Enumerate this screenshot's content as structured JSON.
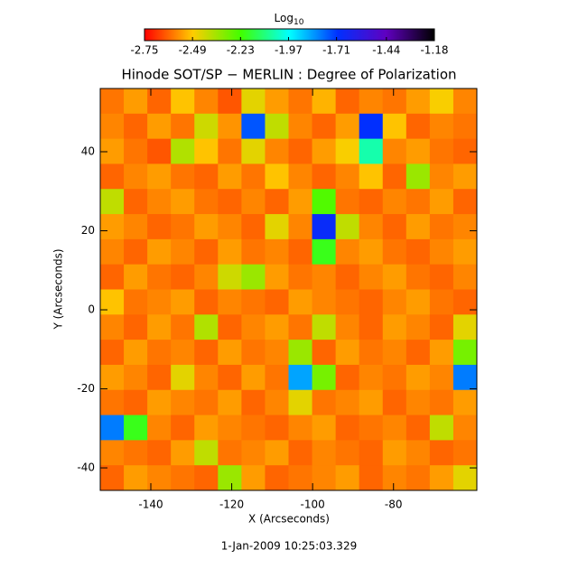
{
  "chart_data": {
    "type": "heatmap",
    "title": "Hinode SOT/SP − MERLIN : Degree of Polarization",
    "xlabel": "X (Arcseconds)",
    "ylabel": "Y (Arcseconds)",
    "footer": "1-Jan-2009 10:25:03.329",
    "colorbar_label": "Log",
    "colorbar_label_sub": "10",
    "xlim": [
      -152.5,
      -59.4
    ],
    "ylim": [
      -45.7,
      56
    ],
    "xticks": [
      -140,
      -120,
      -100,
      -80
    ],
    "yticks": [
      -40,
      -20,
      0,
      20,
      40
    ],
    "clim": [
      -2.75,
      -1.18
    ],
    "cticks": [
      -2.75,
      -2.49,
      -2.23,
      -1.97,
      -1.71,
      -1.44,
      -1.18
    ],
    "colormap": [
      "#ff0000",
      "#ffcc00",
      "#40ff00",
      "#00ffff",
      "#0030ff",
      "#6000c0",
      "#000000"
    ],
    "z": [
      [
        -2.6,
        -2.55,
        -2.62,
        -2.5,
        -2.58,
        -2.64,
        -2.45,
        -2.55,
        -2.6,
        -2.52,
        -2.62,
        -2.58,
        -2.6,
        -2.55,
        -2.48,
        -2.58
      ],
      [
        -2.58,
        -2.62,
        -2.55,
        -2.6,
        -2.42,
        -2.56,
        -1.75,
        -2.4,
        -2.58,
        -2.62,
        -2.55,
        -1.7,
        -2.5,
        -2.62,
        -2.58,
        -2.6
      ],
      [
        -2.55,
        -2.6,
        -2.64,
        -2.38,
        -2.5,
        -2.6,
        -2.45,
        -2.58,
        -2.62,
        -2.55,
        -2.48,
        -2.05,
        -2.58,
        -2.55,
        -2.6,
        -2.62
      ],
      [
        -2.62,
        -2.58,
        -2.55,
        -2.6,
        -2.62,
        -2.55,
        -2.6,
        -2.5,
        -2.58,
        -2.62,
        -2.58,
        -2.5,
        -2.62,
        -2.35,
        -2.58,
        -2.55
      ],
      [
        -2.4,
        -2.62,
        -2.58,
        -2.55,
        -2.6,
        -2.62,
        -2.58,
        -2.62,
        -2.55,
        -2.25,
        -2.6,
        -2.62,
        -2.58,
        -2.6,
        -2.55,
        -2.62
      ],
      [
        -2.55,
        -2.58,
        -2.62,
        -2.6,
        -2.55,
        -2.58,
        -2.62,
        -2.45,
        -2.58,
        -1.68,
        -2.4,
        -2.58,
        -2.62,
        -2.55,
        -2.6,
        -2.58
      ],
      [
        -2.58,
        -2.62,
        -2.55,
        -2.58,
        -2.62,
        -2.55,
        -2.6,
        -2.58,
        -2.62,
        -2.2,
        -2.58,
        -2.55,
        -2.6,
        -2.62,
        -2.58,
        -2.55
      ],
      [
        -2.62,
        -2.55,
        -2.6,
        -2.62,
        -2.58,
        -2.42,
        -2.35,
        -2.55,
        -2.6,
        -2.58,
        -2.62,
        -2.58,
        -2.55,
        -2.6,
        -2.62,
        -2.58
      ],
      [
        -2.5,
        -2.6,
        -2.58,
        -2.55,
        -2.62,
        -2.58,
        -2.6,
        -2.62,
        -2.55,
        -2.58,
        -2.6,
        -2.62,
        -2.58,
        -2.55,
        -2.6,
        -2.62
      ],
      [
        -2.58,
        -2.62,
        -2.55,
        -2.6,
        -2.38,
        -2.62,
        -2.58,
        -2.55,
        -2.6,
        -2.4,
        -2.58,
        -2.62,
        -2.55,
        -2.58,
        -2.62,
        -2.45
      ],
      [
        -2.62,
        -2.55,
        -2.6,
        -2.58,
        -2.62,
        -2.55,
        -2.6,
        -2.58,
        -2.35,
        -2.62,
        -2.55,
        -2.6,
        -2.58,
        -2.62,
        -2.55,
        -2.3
      ],
      [
        -2.55,
        -2.58,
        -2.62,
        -2.45,
        -2.58,
        -2.62,
        -2.55,
        -2.6,
        -1.85,
        -2.3,
        -2.62,
        -2.58,
        -2.6,
        -2.55,
        -2.58,
        -1.8
      ],
      [
        -2.6,
        -2.62,
        -2.55,
        -2.58,
        -2.6,
        -2.55,
        -2.62,
        -2.58,
        -2.45,
        -2.6,
        -2.58,
        -2.55,
        -2.62,
        -2.58,
        -2.6,
        -2.55
      ],
      [
        -1.8,
        -2.2,
        -2.58,
        -2.62,
        -2.55,
        -2.58,
        -2.6,
        -2.62,
        -2.58,
        -2.55,
        -2.62,
        -2.6,
        -2.58,
        -2.62,
        -2.4,
        -2.58
      ],
      [
        -2.58,
        -2.6,
        -2.62,
        -2.55,
        -2.4,
        -2.6,
        -2.58,
        -2.55,
        -2.62,
        -2.58,
        -2.6,
        -2.62,
        -2.55,
        -2.58,
        -2.62,
        -2.6
      ],
      [
        -2.62,
        -2.55,
        -2.58,
        -2.6,
        -2.62,
        -2.35,
        -2.55,
        -2.62,
        -2.6,
        -2.58,
        -2.55,
        -2.62,
        -2.58,
        -2.6,
        -2.55,
        -2.45
      ]
    ]
  }
}
